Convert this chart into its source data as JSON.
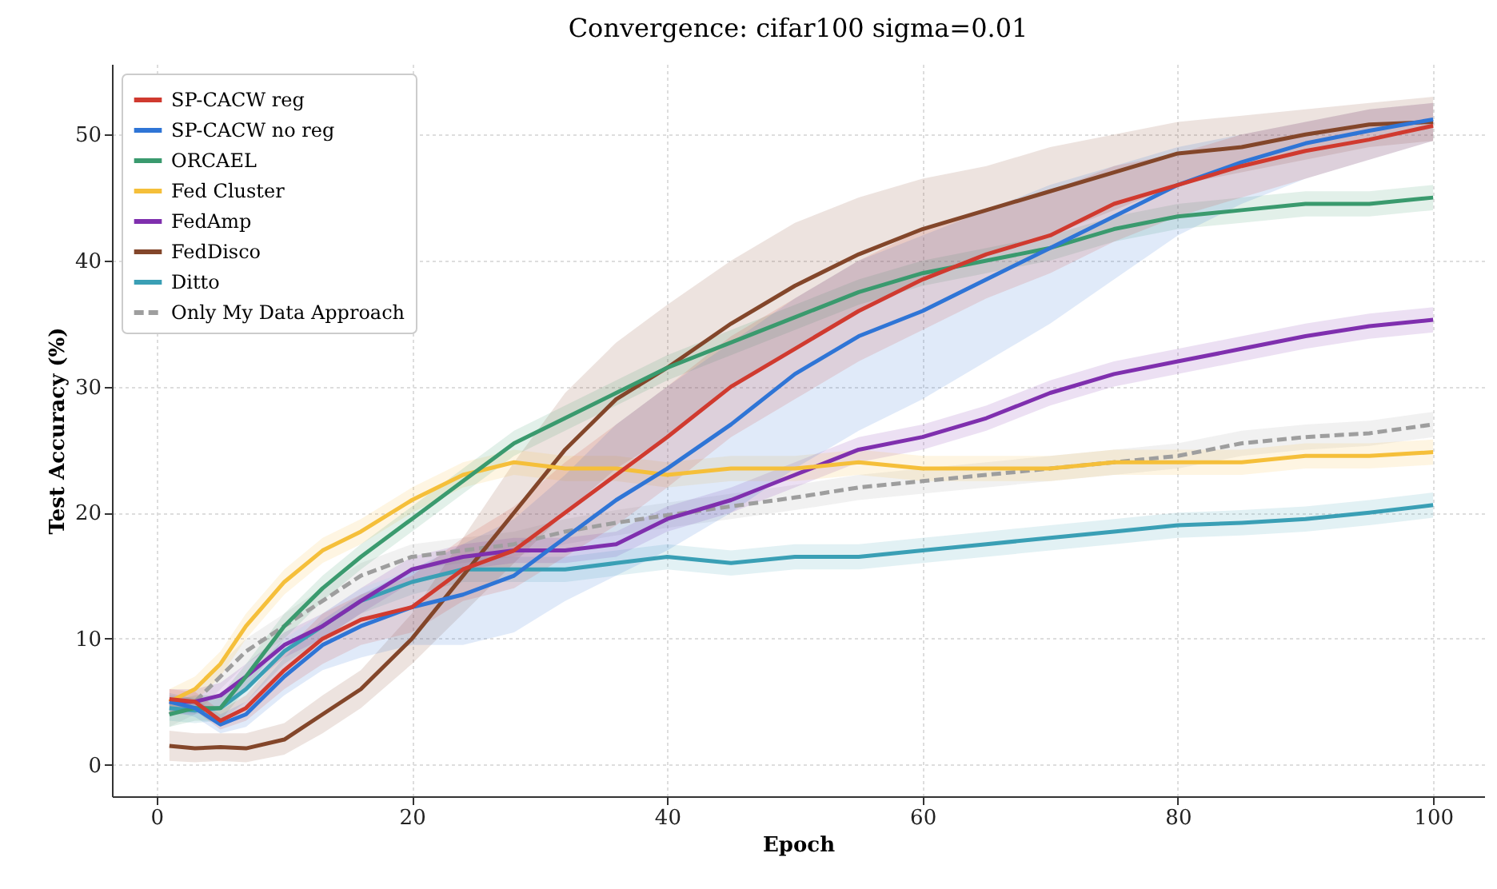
{
  "chart_data": {
    "type": "line",
    "title": "Convergence: cifar100 sigma=0.01",
    "xlabel": "Epoch",
    "ylabel": "Test Accuracy (%)",
    "x": [
      1,
      3,
      5,
      7,
      10,
      13,
      16,
      20,
      24,
      28,
      32,
      36,
      40,
      45,
      50,
      55,
      60,
      65,
      70,
      75,
      80,
      85,
      90,
      95,
      100
    ],
    "xlim": [
      -3.5,
      104
    ],
    "ylim": [
      -2.5,
      55.6
    ],
    "xticks": [
      0,
      20,
      40,
      60,
      80,
      100
    ],
    "yticks": [
      0,
      10,
      20,
      30,
      40,
      50
    ],
    "grid": true,
    "legend": "top left",
    "series": [
      {
        "name": "SP-CACW reg",
        "color": "#d03a2f",
        "values": [
          5.2,
          5,
          3.5,
          4.5,
          7.5,
          10,
          11.5,
          12.5,
          15.5,
          17,
          20,
          23,
          26,
          30,
          33,
          36,
          38.5,
          40.5,
          42,
          44.5,
          46,
          47.5,
          48.7,
          49.6,
          50.7
        ],
        "lower": [
          4.5,
          4.3,
          2.8,
          3.5,
          6,
          8,
          9.5,
          10.5,
          13,
          14,
          16.5,
          19,
          22,
          26,
          29,
          32,
          34.5,
          37,
          39,
          41.5,
          43.5,
          45,
          46.5,
          48,
          49.5
        ],
        "upper": [
          6,
          5.8,
          4.3,
          5.5,
          9,
          12,
          13.5,
          15,
          18,
          20.5,
          24,
          27,
          30,
          34,
          37,
          40,
          42.5,
          44,
          45.5,
          47.5,
          48.5,
          50,
          51,
          52,
          52.5
        ]
      },
      {
        "name": "SP-CACW no reg",
        "color": "#2f75d6",
        "values": [
          5,
          4.5,
          3.2,
          4,
          7,
          9.5,
          11,
          12.5,
          13.5,
          15,
          18,
          21,
          23.5,
          27,
          31,
          34,
          36,
          38.5,
          41,
          43.5,
          46,
          47.8,
          49.3,
          50.3,
          51.2
        ],
        "lower": [
          4.3,
          3.8,
          2.5,
          3,
          5.5,
          7.5,
          8.5,
          9.5,
          9.5,
          10.5,
          13,
          15,
          17,
          20,
          23.5,
          26.5,
          29,
          32,
          35,
          38.5,
          42,
          44.5,
          46.5,
          48,
          49.5
        ],
        "upper": [
          5.7,
          5.2,
          4,
          5,
          8.5,
          11.5,
          13.5,
          15.5,
          17.5,
          19.5,
          23,
          27,
          30,
          33.5,
          37,
          40,
          42,
          44,
          46,
          47.5,
          49,
          50,
          51,
          52,
          52.5
        ]
      },
      {
        "name": "ORCAEL",
        "color": "#3a9a6e",
        "values": [
          4,
          4.5,
          4.5,
          7,
          11,
          14,
          16.5,
          19.5,
          22.5,
          25.5,
          27.5,
          29.5,
          31.5,
          33.5,
          35.5,
          37.5,
          39,
          40,
          41,
          42.5,
          43.5,
          44,
          44.5,
          44.5,
          45
        ],
        "lower": [
          3,
          3.5,
          3.5,
          6,
          10,
          13,
          15.5,
          18.5,
          21.5,
          24.5,
          26.5,
          28.5,
          30.5,
          32.5,
          34.5,
          36.5,
          38,
          39,
          40,
          41.5,
          42.5,
          43,
          43.5,
          43.5,
          44
        ],
        "upper": [
          5,
          5.5,
          5.5,
          8,
          12,
          15,
          17.5,
          20.5,
          23.5,
          26.5,
          28.5,
          30.5,
          32.5,
          34.5,
          36.5,
          38.5,
          40,
          41,
          42,
          43.5,
          44.5,
          45,
          45.5,
          45.5,
          46
        ]
      },
      {
        "name": "Fed Cluster",
        "color": "#f5bf3a",
        "values": [
          5,
          6,
          8,
          11,
          14.5,
          17,
          18.5,
          21,
          23,
          24,
          23.5,
          23.5,
          23,
          23.5,
          23.5,
          24,
          23.5,
          23.5,
          23.5,
          24,
          24,
          24,
          24.5,
          24.5,
          24.8
        ],
        "lower": [
          4,
          5,
          7,
          10,
          13.5,
          16,
          17.5,
          20,
          22,
          23,
          22.5,
          22.5,
          22,
          22.5,
          22.5,
          23,
          22.5,
          22.5,
          22.5,
          23,
          23,
          23,
          23.5,
          23.5,
          23.8
        ],
        "upper": [
          6,
          7,
          9,
          12,
          15.5,
          18,
          19.5,
          22,
          24,
          25,
          24.5,
          24.5,
          24,
          24.5,
          24.5,
          25,
          24.5,
          24.5,
          24.5,
          25,
          25,
          25,
          25.5,
          25.5,
          25.8
        ]
      },
      {
        "name": "FedAmp",
        "color": "#7f2fae",
        "values": [
          5,
          5,
          5.5,
          7,
          9.5,
          11,
          13,
          15.5,
          16.5,
          17,
          17,
          17.5,
          19.5,
          21,
          23,
          25,
          26,
          27.5,
          29.5,
          31,
          32,
          33,
          34,
          34.8,
          35.3
        ],
        "lower": [
          4,
          4,
          4.5,
          6,
          8.5,
          10,
          12,
          14.5,
          15.5,
          16,
          16,
          16.5,
          18.5,
          20,
          22,
          24,
          25,
          26.5,
          28.5,
          30,
          31,
          32,
          33,
          33.8,
          34.3
        ],
        "upper": [
          6,
          6,
          6.5,
          8,
          10.5,
          12,
          14,
          16.5,
          17.5,
          18,
          18,
          18.5,
          20.5,
          22,
          24,
          26,
          27,
          28.5,
          30.5,
          32,
          33,
          34,
          35,
          35.8,
          36.3
        ]
      },
      {
        "name": "FedDisco",
        "color": "#83462a",
        "values": [
          1.5,
          1.3,
          1.4,
          1.3,
          2,
          4,
          6,
          10,
          15,
          20,
          25,
          29,
          31.5,
          35,
          38,
          40.5,
          42.5,
          44,
          45.5,
          47,
          48.5,
          49,
          50,
          50.8,
          51
        ],
        "lower": [
          0.3,
          0.2,
          0.3,
          0.2,
          0.8,
          2.5,
          4.5,
          8,
          12,
          16,
          20,
          23.5,
          26,
          30,
          33,
          36,
          38.5,
          40.5,
          42,
          44,
          46,
          47,
          48,
          49,
          49.5
        ],
        "upper": [
          2.7,
          2.5,
          2.5,
          2.5,
          3.3,
          5.5,
          7.5,
          12,
          18,
          24,
          29.5,
          33.5,
          36.5,
          40,
          43,
          45,
          46.5,
          47.5,
          49,
          50,
          51,
          51.5,
          52,
          52.5,
          53
        ]
      },
      {
        "name": "Ditto",
        "color": "#3a9fb5",
        "values": [
          4.5,
          4.3,
          4.5,
          6,
          9,
          11,
          13,
          14.5,
          15.5,
          15.5,
          15.5,
          16,
          16.5,
          16,
          16.5,
          16.5,
          17,
          17.5,
          18,
          18.5,
          19,
          19.2,
          19.5,
          20,
          20.6
        ],
        "lower": [
          3.5,
          3.3,
          3.5,
          5,
          8,
          10,
          12,
          13.5,
          14.5,
          14.5,
          14.5,
          15,
          15.5,
          15,
          15.5,
          15.5,
          16,
          16.5,
          17,
          17.5,
          18,
          18.2,
          18.5,
          19,
          19.6
        ],
        "upper": [
          5.5,
          5.3,
          5.5,
          7,
          10,
          12,
          14,
          15.5,
          16.5,
          16.5,
          16.5,
          17,
          17.5,
          17,
          17.5,
          17.5,
          18,
          18.5,
          19,
          19.5,
          20,
          20.2,
          20.5,
          21,
          21.6
        ]
      },
      {
        "name": "Only My Data Approach",
        "color": "#9e9e9e",
        "line_style": "dashed",
        "values": [
          4,
          5,
          7,
          9,
          11,
          13,
          15,
          16.5,
          17,
          17.5,
          18.5,
          19.2,
          19.8,
          20.5,
          21.2,
          22,
          22.5,
          23,
          23.5,
          24,
          24.5,
          25.5,
          26,
          26.3,
          27
        ],
        "lower": [
          3,
          4,
          6,
          8,
          10,
          12,
          14,
          15.5,
          16,
          16.5,
          17.5,
          18.2,
          18.8,
          19.5,
          20.2,
          21,
          21.5,
          22,
          22.5,
          23,
          23.5,
          24.5,
          25,
          25.3,
          26
        ],
        "upper": [
          5,
          6,
          8,
          10,
          12,
          14,
          16,
          17.5,
          18,
          18.5,
          19.5,
          20.2,
          20.8,
          21.5,
          22.2,
          23,
          23.5,
          24,
          24.5,
          25,
          25.5,
          26.5,
          27,
          27.3,
          28
        ]
      }
    ]
  }
}
